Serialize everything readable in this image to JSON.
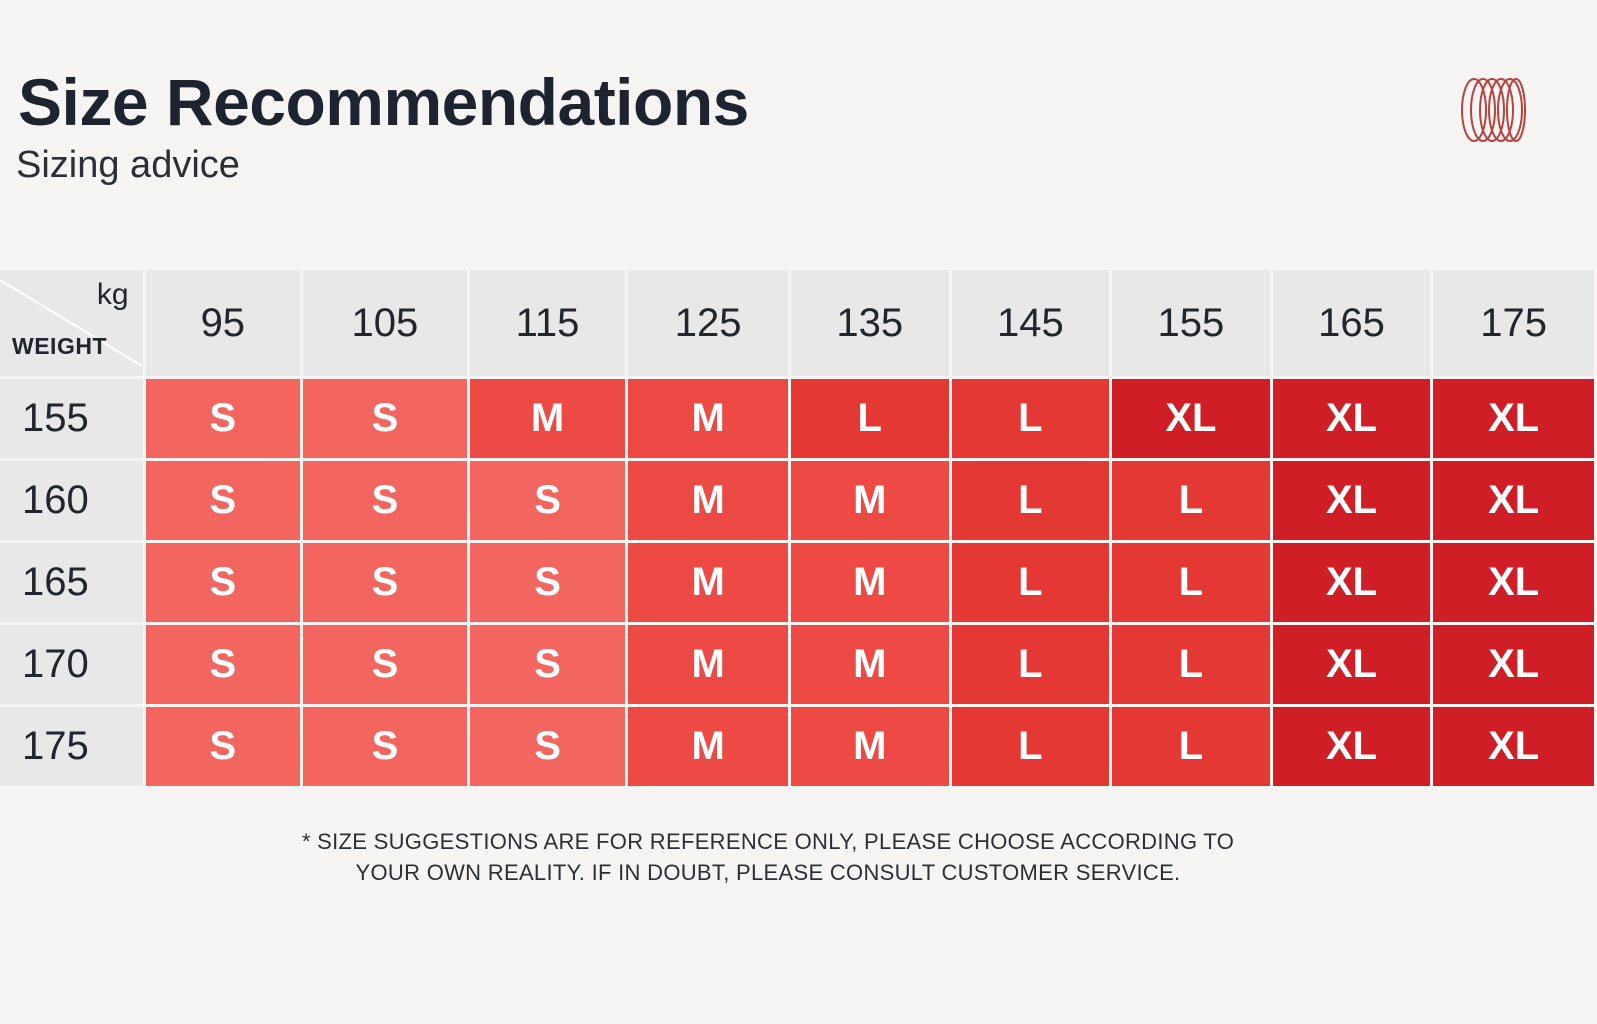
{
  "header": {
    "title": "Size Recommendations",
    "subtitle": "Sizing advice",
    "logo_icon": "coil-rings-icon",
    "logo_color": "#b8433f"
  },
  "table": {
    "corner_unit": "kg",
    "corner_axis": "WEIGHT",
    "columns": [
      "95",
      "105",
      "115",
      "125",
      "135",
      "145",
      "155",
      "165",
      "175"
    ],
    "rows": [
      {
        "label": "155",
        "cells": [
          "S",
          "S",
          "M",
          "M",
          "L",
          "L",
          "XL",
          "XL",
          "XL"
        ]
      },
      {
        "label": "160",
        "cells": [
          "S",
          "S",
          "S",
          "M",
          "M",
          "L",
          "L",
          "XL",
          "XL"
        ]
      },
      {
        "label": "165",
        "cells": [
          "S",
          "S",
          "S",
          "M",
          "M",
          "L",
          "L",
          "XL",
          "XL"
        ]
      },
      {
        "label": "170",
        "cells": [
          "S",
          "S",
          "S",
          "M",
          "M",
          "L",
          "L",
          "XL",
          "XL"
        ]
      },
      {
        "label": "175",
        "cells": [
          "S",
          "S",
          "S",
          "M",
          "M",
          "L",
          "L",
          "XL",
          "XL"
        ]
      }
    ],
    "size_colors": {
      "S": "#f3655f",
      "M": "#ee4a45",
      "L": "#e33834",
      "XL": "#cf1e26"
    }
  },
  "footnote": {
    "line1": "* SIZE SUGGESTIONS ARE FOR REFERENCE ONLY, PLEASE CHOOSE ACCORDING TO",
    "line2": "YOUR OWN REALITY. IF IN DOUBT, PLEASE CONSULT CUSTOMER SERVICE."
  }
}
